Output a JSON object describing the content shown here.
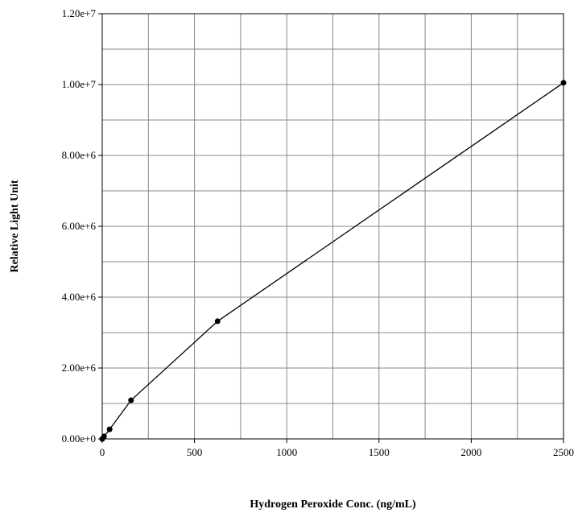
{
  "chart_data": {
    "type": "line",
    "title": "",
    "xlabel": "Hydrogen Peroxide Conc. (ng/mL)",
    "ylabel": "Relative Light Unit",
    "xlim": [
      0,
      2500
    ],
    "ylim": [
      0,
      12000000
    ],
    "x_ticks": [
      0,
      500,
      1000,
      1500,
      2000,
      2500
    ],
    "x_tick_labels": [
      "0",
      "500",
      "1000",
      "1500",
      "2000",
      "2500"
    ],
    "y_ticks": [
      0,
      2000000,
      4000000,
      6000000,
      8000000,
      10000000,
      12000000
    ],
    "y_tick_labels": [
      "0.00e+0",
      "2.00e+6",
      "4.00e+6",
      "6.00e+6",
      "8.00e+6",
      "1.00e+7",
      "1.20e+7"
    ],
    "x_grid_step": 250,
    "y_grid_step": 1000000,
    "grid": true,
    "series": [
      {
        "x": [
          0,
          10,
          40,
          156,
          625,
          2500
        ],
        "y": [
          0,
          70000,
          270000,
          1090000,
          3320000,
          10050000
        ],
        "color": "#000000",
        "marker": "circle"
      }
    ]
  }
}
